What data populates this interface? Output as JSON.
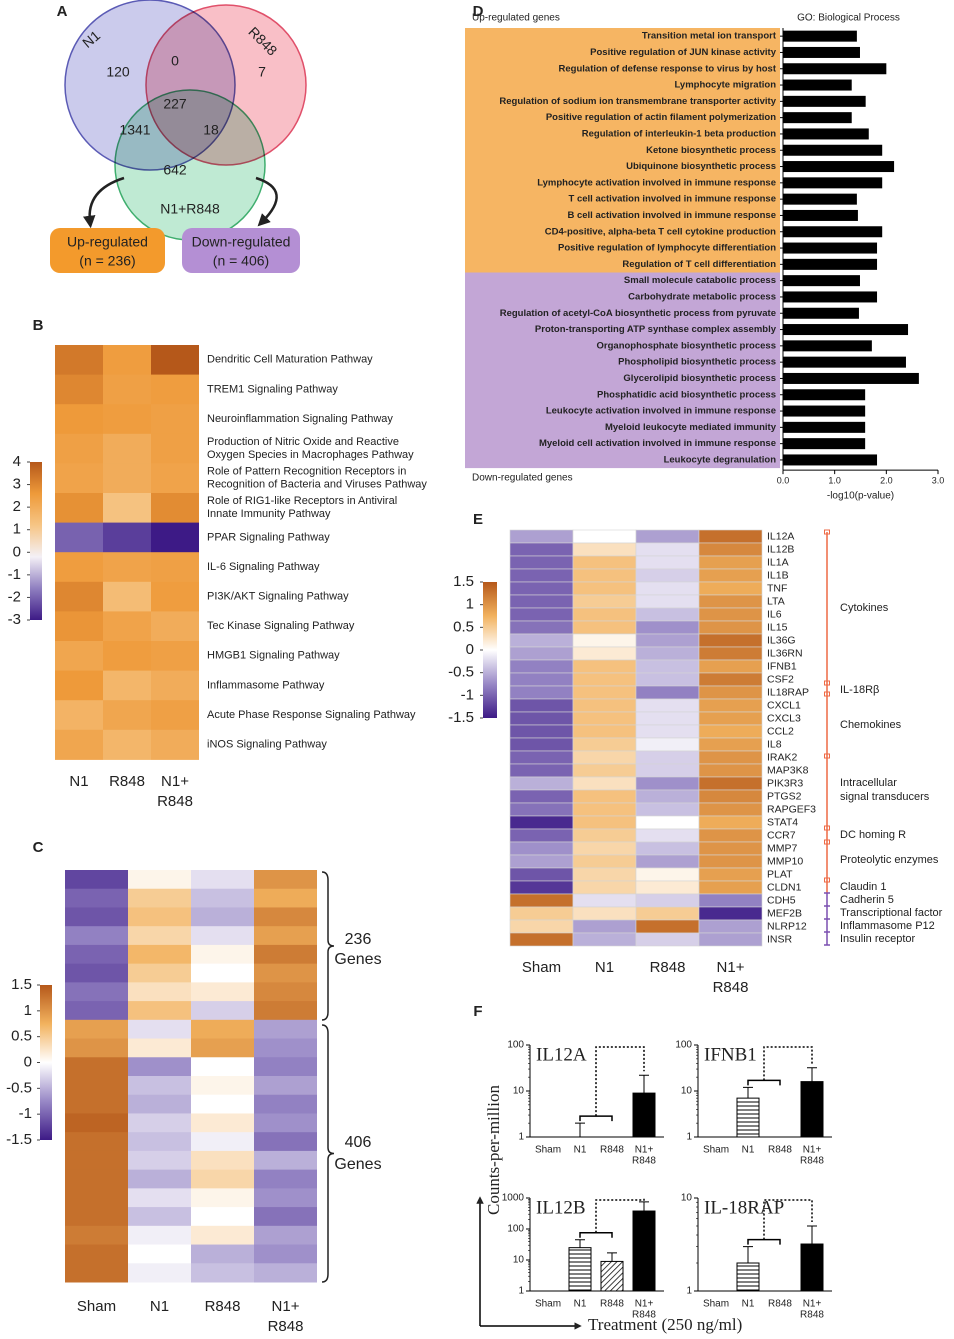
{
  "chart_data": [
    {
      "type": "venn",
      "panel": "A",
      "sets": [
        {
          "name": "N1",
          "color": "#b9b9e6",
          "edge": "#5b5bb5"
        },
        {
          "name": "R848",
          "color": "#f7a9b4",
          "edge": "#e0506a"
        },
        {
          "name": "N1+R848",
          "color": "#a9e3c4",
          "edge": "#3fae6e"
        }
      ],
      "regions": [
        120,
        0,
        7,
        227,
        1341,
        18,
        642
      ],
      "outputs": [
        {
          "label": "Up-regulated",
          "count": "(n = 236)",
          "color": "#f39a2c"
        },
        {
          "label": "Down-regulated",
          "count": "(n = 406)",
          "color": "#b48fd4"
        }
      ]
    },
    {
      "type": "heatmap",
      "panel": "B",
      "columns": [
        "N1",
        "R848",
        [
          "N1+",
          "R848"
        ]
      ],
      "rows": [
        "Dendritic Cell Maturation Pathway",
        "TREM1 Signaling Pathway",
        "Neuroinflammation Signaling Pathway",
        [
          "Production of Nitric Oxide and Reactive",
          "Oxygen Species in Macrophages Pathway"
        ],
        [
          "Role of Pattern Recognition Receptors in",
          "Recognition of Bacteria and Viruses Pathway"
        ],
        [
          "Role of RIG1-like Receptors in Antiviral",
          "Innate Immunity Pathway"
        ],
        "PPAR Signaling Pathway",
        "IL-6 Signaling Pathway",
        "PI3K/AKT Signaling Pathway",
        "Tec Kinase Signaling Pathway",
        "HMGB1 Signaling Pathway",
        "Inflammasome Pathway",
        "Acute Phase Response Signaling Pathway",
        "iNOS Signaling Pathway"
      ],
      "values": [
        [
          3.3,
          2.5,
          4
        ],
        [
          3,
          2.4,
          2.5
        ],
        [
          2.6,
          2.5,
          2.4
        ],
        [
          2.4,
          2,
          2.4
        ],
        [
          2.3,
          2,
          2.3
        ],
        [
          2.8,
          1.3,
          2.9
        ],
        [
          -2,
          -2.5,
          -3
        ],
        [
          2.5,
          2.3,
          2.4
        ],
        [
          3,
          1.5,
          2.5
        ],
        [
          2.7,
          2.3,
          2
        ],
        [
          2.2,
          2.5,
          2.4
        ],
        [
          2.6,
          1.7,
          2
        ],
        [
          1.8,
          2.2,
          2.4
        ],
        [
          2.2,
          1.7,
          2
        ]
      ],
      "zlim": [
        -3,
        4
      ],
      "zticks": [
        4,
        3,
        2,
        1,
        0,
        -1,
        -2,
        -3
      ],
      "colors": [
        "#3d1a86",
        "#8f7fc0",
        "#f4f0f6",
        "#f6c585",
        "#ee9a3a",
        "#b5581a"
      ]
    },
    {
      "type": "heatmap",
      "panel": "C",
      "columns": [
        "Sham",
        "N1",
        "R848",
        [
          "N1+",
          "R848"
        ]
      ],
      "values": [
        [
          -1.2,
          0.1,
          -0.2,
          1.0
        ],
        [
          -1.0,
          0.5,
          -0.4,
          0.8
        ],
        [
          -1.1,
          0.6,
          -0.5,
          1.1
        ],
        [
          -0.8,
          0.4,
          -0.2,
          0.9
        ],
        [
          -1.0,
          0.7,
          0.1,
          1.2
        ],
        [
          -1.1,
          0.5,
          0.0,
          1.0
        ],
        [
          -0.9,
          0.3,
          0.2,
          1.1
        ],
        [
          -1.0,
          0.6,
          -0.3,
          1.2
        ],
        [
          0.9,
          -0.2,
          0.8,
          -0.6
        ],
        [
          1.0,
          0.2,
          0.9,
          -0.7
        ],
        [
          1.3,
          -0.7,
          0.0,
          -0.8
        ],
        [
          1.3,
          -0.4,
          0.1,
          -0.6
        ],
        [
          1.3,
          -0.5,
          0.0,
          -0.8
        ],
        [
          1.4,
          -0.3,
          0.2,
          -0.7
        ],
        [
          1.3,
          -0.4,
          -0.1,
          -0.9
        ],
        [
          1.3,
          -0.3,
          0.3,
          -0.5
        ],
        [
          1.3,
          -0.5,
          0.4,
          -0.8
        ],
        [
          1.3,
          -0.2,
          0.1,
          -0.7
        ],
        [
          1.3,
          -0.4,
          0.0,
          -0.9
        ],
        [
          1.2,
          -0.1,
          0.2,
          -0.6
        ],
        [
          1.3,
          0.0,
          -0.5,
          -0.7
        ],
        [
          1.3,
          -0.1,
          -0.4,
          -0.5
        ]
      ],
      "zlim": [
        -1.5,
        1.5
      ],
      "zticks": [
        1.5,
        1,
        0.5,
        0,
        -0.5,
        -1,
        -1.5
      ],
      "colors": [
        "#3d1a86",
        "#9888c6",
        "#ffffff",
        "#f2b25e",
        "#b5581a"
      ],
      "braces": [
        [
          "236",
          "Genes"
        ],
        [
          "406",
          "Genes"
        ]
      ]
    },
    {
      "type": "bar",
      "panel": "D",
      "title": "GO: Biological Process",
      "x_label": "-log10(p-value)",
      "color": "#000000",
      "xlim": [
        0,
        3
      ],
      "xticks": [
        {
          "value": 0,
          "label": "0.0"
        },
        {
          "value": 1,
          "label": "1.0"
        },
        {
          "value": 2,
          "label": "2.0"
        },
        {
          "value": 3,
          "label": "3.0"
        }
      ],
      "groups": [
        {
          "label": "Up-regulated genes",
          "color": "#f6b563",
          "categories": [
            "Transition metal ion transport",
            "Positive regulation of JUN kinase activity",
            "Regulation of defense response to virus by host",
            "Lymphocyte migration",
            "Regulation of sodium ion transmembrane transporter activity",
            "Positive regulation of actin filament polymerization",
            "Regulation of interleukin-1 beta production",
            "Ketone biosynthetic process",
            "Ubiquinone biosynthetic process",
            "Lymphocyte activation involved in immune response",
            "T cell activation involved in immune response",
            "B cell activation involved in immune response",
            "CD4-positive, alpha-beta T cell cytokine production",
            "Positive regulation of lymphocyte differentiation",
            "Regulation of T cell differentiation"
          ],
          "values": [
            1.43,
            1.49,
            2.0,
            1.33,
            1.6,
            1.33,
            1.66,
            1.92,
            2.15,
            1.92,
            1.43,
            1.45,
            1.92,
            1.82,
            1.82
          ]
        },
        {
          "label": "Down-regulated genes",
          "color": "#c3a6d6",
          "categories": [
            "Small molecule catabolic process",
            "Carbohydrate metabolic process",
            "Regulation of acetyl-CoA biosynthetic process from pyruvate",
            "Proton-transporting ATP synthase complex assembly",
            "Organophosphate biosynthetic process",
            "Phospholipid biosynthetic process",
            "Glycerolipid biosynthetic process",
            "Phosphatidic acid biosynthetic process",
            "Leukocyte activation involved in immune response",
            "Myeloid leukocyte mediated immunity",
            "Myeloid cell activation involved in immune response",
            "Leukocyte degranulation"
          ],
          "values": [
            1.49,
            1.82,
            1.47,
            2.42,
            1.72,
            2.38,
            2.63,
            1.59,
            1.59,
            1.59,
            1.59,
            1.82
          ]
        }
      ]
    },
    {
      "type": "heatmap",
      "panel": "E",
      "columns": [
        "Sham",
        "N1",
        "R848",
        [
          "N1+",
          "R848"
        ]
      ],
      "rows": [
        "IL12A",
        "IL12B",
        "IL1A",
        "IL1B",
        "TNF",
        "LTA",
        "IL6",
        "IL15",
        "IL36G",
        "IL36RN",
        "IFNB1",
        "CSF2",
        "IL18RAP",
        "CXCL1",
        "CXCL3",
        "CCL2",
        "IL8",
        "IRAK2",
        "MAP3K8",
        "PIK3R3",
        "PTGS2",
        "RAPGEF3",
        "STAT4",
        "CCR7",
        "MMP7",
        "MMP10",
        "PLAT",
        "CLDN1",
        "CDH5",
        "MEF2B",
        "NLRP12",
        "INSR"
      ],
      "values": [
        [
          -0.6,
          0,
          -0.6,
          1.3
        ],
        [
          -1,
          0.3,
          -0.2,
          1.1
        ],
        [
          -1,
          0.6,
          -0.2,
          0.9
        ],
        [
          -1,
          0.6,
          -0.3,
          0.9
        ],
        [
          -1,
          0.6,
          -0.2,
          0.8
        ],
        [
          -1,
          0.5,
          -0.2,
          1.0
        ],
        [
          -1,
          0.6,
          -0.4,
          1.0
        ],
        [
          -0.9,
          0.6,
          -0.7,
          1.0
        ],
        [
          -0.5,
          0.1,
          -0.6,
          1.3
        ],
        [
          -0.6,
          0.2,
          -0.5,
          1.2
        ],
        [
          -0.8,
          0.6,
          -0.4,
          0.9
        ],
        [
          -0.8,
          0.6,
          -0.4,
          1.2
        ],
        [
          -0.8,
          0.6,
          -0.8,
          1.0
        ],
        [
          -1.1,
          0.6,
          -0.2,
          0.9
        ],
        [
          -1.1,
          0.6,
          -0.2,
          0.9
        ],
        [
          -1.1,
          0.6,
          -0.2,
          0.8
        ],
        [
          -1.1,
          0.5,
          -0.1,
          0.9
        ],
        [
          -1,
          0.4,
          -0.3,
          1.0
        ],
        [
          -1,
          0.5,
          -0.3,
          1.0
        ],
        [
          -0.5,
          0.3,
          -0.7,
          1.3
        ],
        [
          -1,
          0.6,
          -0.5,
          1.1
        ],
        [
          -0.9,
          0.6,
          -0.4,
          1.0
        ],
        [
          -1.4,
          0.6,
          0,
          0.8
        ],
        [
          -1,
          0.5,
          -0.2,
          1.0
        ],
        [
          -0.7,
          0.4,
          -0.4,
          1.0
        ],
        [
          -0.6,
          0.5,
          -0.6,
          1.0
        ],
        [
          -1.1,
          0.4,
          0.1,
          0.9
        ],
        [
          -1.3,
          0.4,
          0.2,
          0.9
        ],
        [
          1.3,
          -0.2,
          -0.3,
          -0.8
        ],
        [
          0.5,
          0.3,
          0.5,
          -1.4
        ],
        [
          0.4,
          -0.6,
          1.3,
          -0.6
        ],
        [
          1.3,
          -0.5,
          -0.3,
          -0.6
        ]
      ],
      "zlim": [
        -1.5,
        1.5
      ],
      "zticks": [
        1.5,
        1,
        0.5,
        0,
        -0.5,
        -1,
        -1.5
      ],
      "colors": [
        "#3d1a86",
        "#9888c6",
        "#ffffff",
        "#f2b25e",
        "#b5581a"
      ],
      "groups": [
        [
          "Cytokines"
        ],
        [
          "IL-18Rβ"
        ],
        [
          "Chemokines"
        ],
        [
          "Intracellular",
          "signal transducers"
        ],
        [
          "DC homing R"
        ],
        [
          "Proteolytic enzymes"
        ],
        [
          "Claudin 1"
        ],
        [
          "Cadherin 5"
        ],
        [
          "Transcriptional factor"
        ],
        [
          "Inflammasome P12"
        ],
        [
          "Insulin receptor"
        ]
      ],
      "group_colors": [
        "#ee6a45",
        "#7b4fb0"
      ]
    },
    {
      "type": "bar",
      "panel": "F",
      "y_label": "Counts-per-million",
      "x_label": "Treatment (250 ng/ml)",
      "log_y": true,
      "bar_styles": [
        "horizontal-lines",
        "horizontal-lines",
        "diagonal-hatch",
        "solid"
      ],
      "subplots": [
        {
          "title": "IL12A",
          "categories": [
            "Sham",
            "N1",
            "R848",
            [
              "N1+",
              "R848"
            ]
          ],
          "values": [
            null,
            1,
            null,
            9
          ],
          "errors": [
            null,
            1,
            null,
            13
          ],
          "ylim": [
            1,
            100
          ],
          "yticks": [
            1,
            10,
            100
          ]
        },
        {
          "title": "IFNB1",
          "categories": [
            "Sham",
            "N1",
            "R848",
            [
              "N1+",
              "R848"
            ]
          ],
          "values": [
            null,
            7,
            null,
            16
          ],
          "errors": [
            null,
            5,
            null,
            16
          ],
          "ylim": [
            1,
            100
          ],
          "yticks": [
            1,
            10,
            100
          ]
        },
        {
          "title": "IL12B",
          "categories": [
            "Sham",
            "N1",
            "R848",
            [
              "N1+",
              "R848"
            ]
          ],
          "values": [
            null,
            25,
            9,
            380
          ],
          "errors": [
            null,
            20,
            8,
            370
          ],
          "ylim": [
            1,
            1000
          ],
          "yticks": [
            1,
            10,
            100,
            1000
          ]
        },
        {
          "title": "IL-18RAP",
          "categories": [
            "Sham",
            "N1",
            "R848",
            [
              "N1+",
              "R848"
            ]
          ],
          "values": [
            null,
            2,
            null,
            3.2
          ],
          "errors": [
            null,
            1,
            null,
            1.8
          ],
          "ylim": [
            1,
            10
          ],
          "yticks": [
            1,
            10
          ]
        }
      ]
    }
  ]
}
